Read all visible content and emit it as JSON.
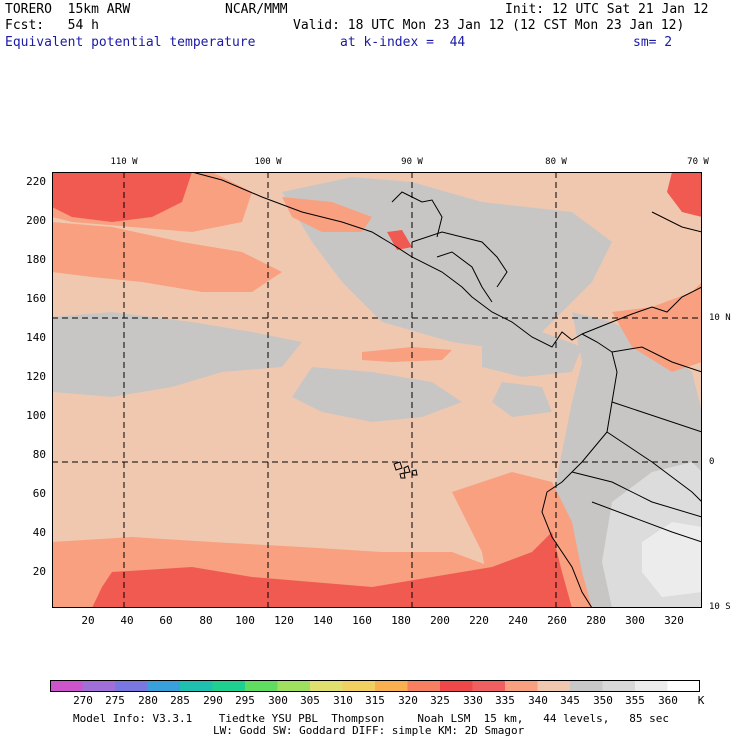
{
  "header": {
    "model": "TORERO  15km ARW",
    "center": "NCAR/MMM",
    "init": "Init: 12 UTC Sat 21 Jan 12",
    "fcst": "Fcst:   54 h",
    "valid": "Valid: 18 UTC Mon 23 Jan 12 (12 CST Mon 23 Jan 12)",
    "field": "Equivalent potential temperature",
    "level": "at k-index =  44",
    "smooth": "sm= 2"
  },
  "axes": {
    "lon_ticks": [
      "110 W",
      "100 W",
      "90 W",
      "80 W",
      "70 W"
    ],
    "lat_ticks": [
      "10 N",
      "0",
      "10 S"
    ],
    "y_ticks": [
      "220",
      "200",
      "180",
      "160",
      "140",
      "120",
      "100",
      "80",
      "60",
      "40",
      "20"
    ],
    "x_ticks": [
      "20",
      "40",
      "60",
      "80",
      "100",
      "120",
      "140",
      "160",
      "180",
      "200",
      "220",
      "240",
      "260",
      "280",
      "300",
      "320"
    ]
  },
  "colorbar": {
    "labels": [
      "270",
      "275",
      "280",
      "285",
      "290",
      "295",
      "300",
      "305",
      "310",
      "315",
      "320",
      "325",
      "330",
      "335",
      "340",
      "345",
      "350",
      "355",
      "360"
    ],
    "unit": "K",
    "colors": [
      "#cc55cc",
      "#a070d8",
      "#7878e0",
      "#3aa0dc",
      "#20c0b0",
      "#20d090",
      "#60dc60",
      "#a0e060",
      "#e0e070",
      "#f0d060",
      "#f8b050",
      "#f88060",
      "#f04848",
      "#f06060",
      "#f8a080",
      "#f0c8b0",
      "#c8c8c8",
      "#d8d8d8",
      "#ececec",
      "#ffffff"
    ]
  },
  "footer": {
    "line1": "Model Info: V3.3.1    Tiedtke YSU PBL  Thompson     Noah LSM  15 km,   44 levels,   85 sec",
    "line2": "LW: Godd SW: Goddard DIFF: simple KM: 2D Smagor"
  }
}
